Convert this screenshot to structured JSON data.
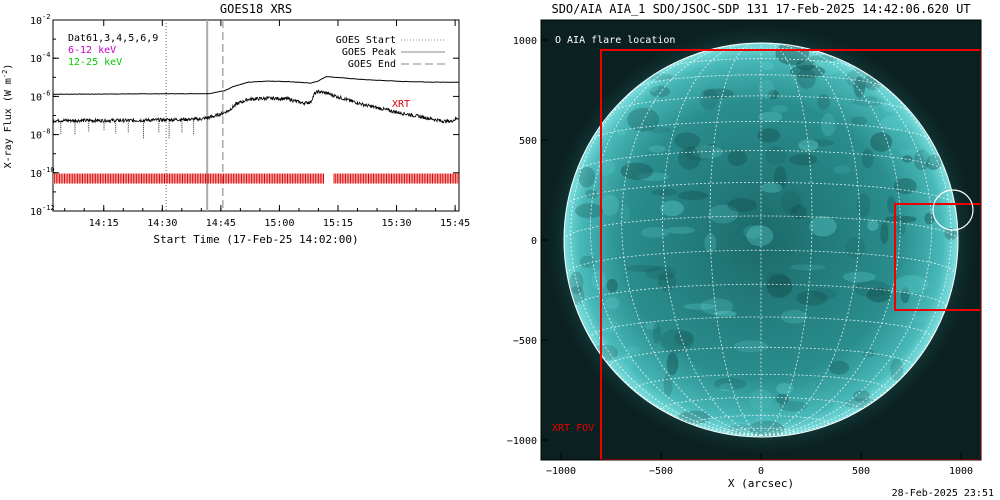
{
  "chart_data": [
    {
      "type": "line",
      "title": "GOES18 XRS",
      "xlabel": "Start Time (17-Feb-25 14:02:00)",
      "ylabel": "X-ray Flux (W m^-2)",
      "ylabel_base": "X-ray Flux (W m",
      "ylabel_exp": "-2",
      "ylabel_close": ")",
      "y_scale": "log",
      "ylim_exp": [
        -12,
        -2
      ],
      "y_tick_base": "10",
      "y_ticks": [
        {
          "exp": -12,
          "label": "-12"
        },
        {
          "exp": -10,
          "label": "-10"
        },
        {
          "exp": -8,
          "label": "-8"
        },
        {
          "exp": -6,
          "label": "-6"
        },
        {
          "exp": -4,
          "label": "-4"
        },
        {
          "exp": -2,
          "label": "-2"
        }
      ],
      "xlim_minutes": [
        0,
        104
      ],
      "x_ticks": [
        {
          "minute": 13,
          "label": "14:15"
        },
        {
          "minute": 28,
          "label": "14:30"
        },
        {
          "minute": 43,
          "label": "14:45"
        },
        {
          "minute": 58,
          "label": "15:00"
        },
        {
          "minute": 73,
          "label": "15:15"
        },
        {
          "minute": 88,
          "label": "15:30"
        },
        {
          "minute": 103,
          "label": "15:45"
        }
      ],
      "legend_left": [
        {
          "label": "Dat61,3,4,5,6,9",
          "color": "#000000"
        },
        {
          "label": "6-12 keV",
          "color": "#cc00cc"
        },
        {
          "label": "12-25 keV",
          "color": "#00cc00"
        }
      ],
      "legend_right": [
        {
          "label": "GOES Start",
          "style": "dotted"
        },
        {
          "label": "GOES Peak",
          "style": "solid"
        },
        {
          "label": "GOES End",
          "style": "dashed"
        }
      ],
      "event_lines": [
        {
          "name": "start",
          "minute": 29,
          "style": "dotted",
          "color": "#999999"
        },
        {
          "name": "peak",
          "minute": 39.5,
          "style": "solid",
          "color": "#aaaaaa"
        },
        {
          "name": "end",
          "minute": 43.5,
          "style": "dashed",
          "color": "#aaaaaa"
        }
      ],
      "series": [
        {
          "key": "long",
          "x": [
            0,
            20,
            40,
            44,
            46,
            50,
            55,
            60,
            66,
            68,
            70,
            75,
            80,
            90,
            100,
            104
          ],
          "y": [
            1.3e-06,
            1.35e-06,
            1.4e-06,
            2e-06,
            3.2e-06,
            5.5e-06,
            6.3e-06,
            6e-06,
            5e-06,
            6.5e-06,
            1.1e-05,
            9e-06,
            7.5e-06,
            6e-06,
            5.5e-06,
            5.5e-06
          ]
        },
        {
          "key": "short",
          "x": [
            0,
            20,
            38,
            42,
            45,
            47,
            50,
            55,
            60,
            64,
            66,
            67,
            68,
            70,
            75,
            80,
            88,
            95,
            100,
            102,
            104
          ],
          "y": [
            5.5e-08,
            5.5e-08,
            6.5e-08,
            1e-07,
            1.8e-07,
            4e-07,
            7e-07,
            8e-07,
            7.5e-07,
            4.5e-07,
            5e-07,
            1.4e-06,
            1.8e-06,
            1.5e-06,
            7e-07,
            3.5e-07,
            1.5e-07,
            8e-08,
            5e-08,
            5e-08,
            8e-08
          ]
        }
      ],
      "xrt_label": "XRT",
      "xrt_label_color": "#dd0000",
      "xrt_coverage_minutes": [
        [
          0,
          69.5
        ],
        [
          72,
          104
        ]
      ],
      "xrt_bar_exp": -10.3,
      "colors": {
        "xrt": "#dd0000",
        "data": "#000000"
      }
    },
    {
      "type": "image",
      "title": "SDO/AIA AIA_1 SDO/JSOC-SDP 131 17-Feb-2025 14:42:06.620 UT",
      "xlabel": "X (arcsec)",
      "xlim": [
        -1100,
        1100
      ],
      "ylim": [
        -1100,
        1100
      ],
      "x_ticks": [
        {
          "value": -1000,
          "label": "−1000"
        },
        {
          "value": -500,
          "label": "−500"
        },
        {
          "value": 0,
          "label": "0"
        },
        {
          "value": 500,
          "label": "500"
        },
        {
          "value": 1000,
          "label": "1000"
        }
      ],
      "y_ticks": [
        {
          "value": 1000,
          "label": "1000"
        },
        {
          "value": 500,
          "label": "500"
        },
        {
          "value": 0,
          "label": "0"
        },
        {
          "value": -500,
          "label": "−500"
        },
        {
          "value": -1000,
          "label": "−1000"
        }
      ],
      "solar_radius_arcsec": 985,
      "flare_location": {
        "x": 960,
        "y": 150,
        "radius": 100
      },
      "flare_legend": "O AIA flare location",
      "xrt_fov": {
        "x0": -800,
        "x1": 1100,
        "y0": -1100,
        "y1": 950
      },
      "xrt_fov_label": "XRT FOV",
      "xrt_small_box": {
        "x0": 670,
        "x1": 1100,
        "y0": -350,
        "y1": 180
      },
      "colors": {
        "disk": "#2a8f8f",
        "background": "#0b2020",
        "fov": "#ee0000",
        "grid": "#ffffff"
      }
    }
  ],
  "footer": {
    "timestamp": "28-Feb-2025 23:51"
  }
}
